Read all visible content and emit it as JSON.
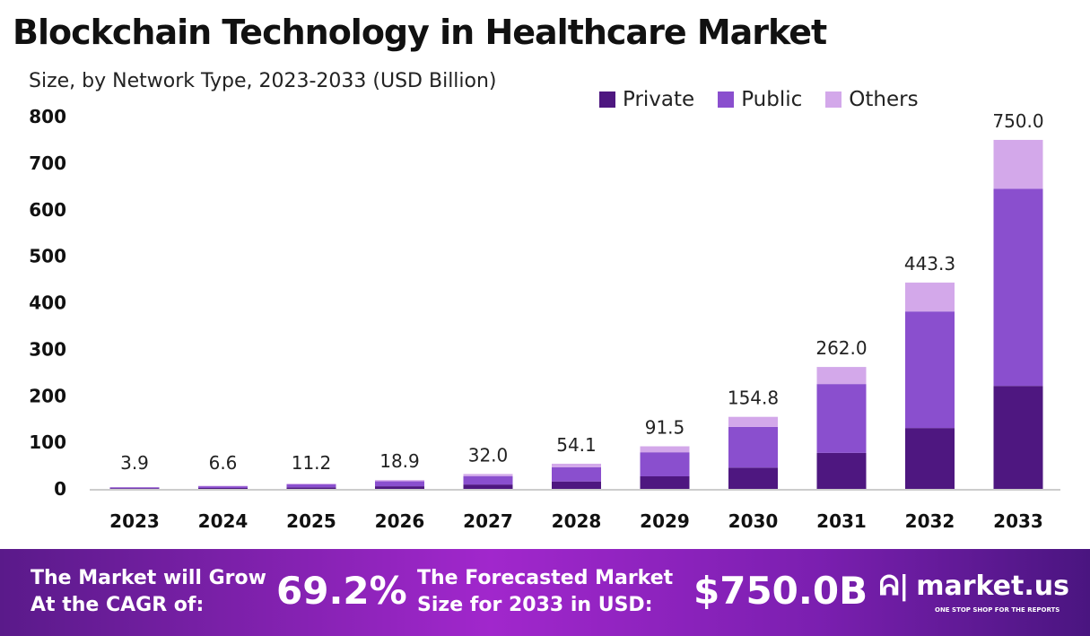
{
  "chart_data": {
    "type": "bar",
    "stacked": true,
    "title": "Blockchain Technology in Healthcare Market",
    "subtitle": "Size, by Network Type, 2023-2033 (USD Billion)",
    "categories": [
      "2023",
      "2024",
      "2025",
      "2026",
      "2027",
      "2028",
      "2029",
      "2030",
      "2031",
      "2032",
      "2033"
    ],
    "series": [
      {
        "name": "Private",
        "color": "#4e1780",
        "values": [
          1.2,
          1.9,
          3.3,
          5.6,
          9.4,
          16.0,
          27.0,
          45.7,
          77.3,
          130.8,
          221.3
        ]
      },
      {
        "name": "Public",
        "color": "#8a4fce",
        "values": [
          2.2,
          3.7,
          6.3,
          10.7,
          18.1,
          30.6,
          51.7,
          87.5,
          148.0,
          250.5,
          423.8
        ]
      },
      {
        "name": "Others",
        "color": "#d3a8ea",
        "values": [
          0.5,
          1.0,
          1.6,
          2.6,
          4.5,
          7.5,
          12.8,
          21.6,
          36.7,
          62.0,
          104.9
        ]
      }
    ],
    "totals": [
      "3.9",
      "6.6",
      "11.2",
      "18.9",
      "32.0",
      "54.1",
      "91.5",
      "154.8",
      "262.0",
      "443.3",
      "750.0"
    ],
    "ylim": [
      0,
      800
    ],
    "yticks": [
      "0",
      "100",
      "200",
      "300",
      "400",
      "500",
      "600",
      "700",
      "800"
    ],
    "grid": false,
    "legend_position": "top-right"
  },
  "footer": {
    "cagr_label_1": "The Market will Grow",
    "cagr_label_2": "At the CAGR of:",
    "cagr_value": "69.2%",
    "forecast_label_1": "The Forecasted Market",
    "forecast_label_2": "Size for 2033 in USD:",
    "forecast_value": "$750.0B",
    "logo_text": "market.us",
    "logo_tagline": "ONE STOP SHOP FOR THE REPORTS"
  }
}
